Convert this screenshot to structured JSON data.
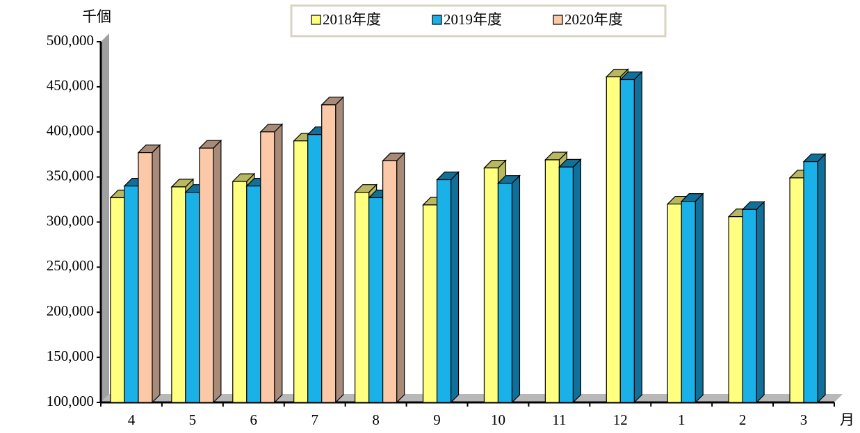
{
  "chart_data": {
    "type": "bar3d",
    "unit_label": "千個",
    "x_label": "月",
    "categories": [
      "4",
      "5",
      "6",
      "7",
      "8",
      "9",
      "10",
      "11",
      "12",
      "1",
      "2",
      "3"
    ],
    "series": [
      {
        "name": "2018年度",
        "color": "#ffff80",
        "side": "#b8b860",
        "values": [
          327000,
          339000,
          345000,
          390000,
          333000,
          319000,
          360000,
          369000,
          461000,
          320000,
          306000,
          349000
        ]
      },
      {
        "name": "2019年度",
        "color": "#1ab0e8",
        "side": "#10709a",
        "values": [
          340000,
          333000,
          340000,
          397000,
          327000,
          347000,
          343000,
          361000,
          458000,
          323000,
          314000,
          367000
        ]
      },
      {
        "name": "2020年度",
        "color": "#fbc9a8",
        "side": "#a88a78",
        "values": [
          377000,
          382000,
          400000,
          430000,
          368000,
          null,
          null,
          null,
          null,
          null,
          null,
          null
        ]
      }
    ],
    "ylim": [
      100000,
      500000
    ],
    "yticks": [
      {
        "value": 100000,
        "label": "100,000"
      },
      {
        "value": 150000,
        "label": "150,000"
      },
      {
        "value": 200000,
        "label": "200,000"
      },
      {
        "value": 250000,
        "label": "250,000"
      },
      {
        "value": 300000,
        "label": "300,000"
      },
      {
        "value": 350000,
        "label": "350,000"
      },
      {
        "value": 400000,
        "label": "400,000"
      },
      {
        "value": 450000,
        "label": "450,000"
      },
      {
        "value": 500000,
        "label": "500,000"
      }
    ],
    "legend": "top"
  }
}
